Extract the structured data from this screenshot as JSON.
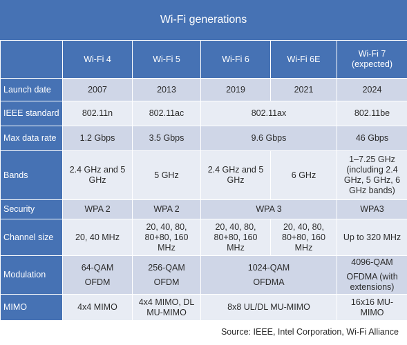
{
  "title": "Wi-Fi generations",
  "columns": [
    "Wi-Fi 4",
    "Wi-Fi 5",
    "Wi-Fi 6",
    "Wi-Fi 6E",
    "Wi-Fi 7\n(expected)"
  ],
  "rows": {
    "launch": {
      "label": "Launch date",
      "c1": "2007",
      "c2": "2013",
      "c3": "2019",
      "c4": "2021",
      "c5": "2024"
    },
    "ieee": {
      "label": "IEEE standard",
      "c1": "802.11n",
      "c2": "802.11ac",
      "c34": "802.11ax",
      "c5": "802.11be"
    },
    "rate": {
      "label": "Max data rate",
      "c1": "1.2 Gbps",
      "c2": "3.5 Gbps",
      "c34": "9.6 Gbps",
      "c5": "46 Gbps"
    },
    "bands": {
      "label": "Bands",
      "c1": "2.4 GHz and 5 GHz",
      "c2": "5 GHz",
      "c3": "2.4 GHz and 5 GHz",
      "c4": "6 GHz",
      "c5": "1–7.25 GHz (including 2.4 GHz, 5 GHz, 6 GHz bands)"
    },
    "security": {
      "label": "Security",
      "c1": "WPA 2",
      "c2": "WPA 2",
      "c34": "WPA 3",
      "c5": "WPA3"
    },
    "channel": {
      "label": "Channel size",
      "c1": "20, 40 MHz",
      "c2": "20, 40, 80, 80+80, 160 MHz",
      "c3": "20, 40, 80, 80+80, 160 MHz",
      "c4": "20, 40, 80, 80+80, 160 MHz",
      "c5": "Up to 320 MHz"
    },
    "modulation": {
      "label": "Modulation",
      "c1a": "64-QAM",
      "c1b": "OFDM",
      "c2a": "256-QAM",
      "c2b": "OFDM",
      "c34a": "1024-QAM",
      "c34b": "OFDMA",
      "c5a": "4096-QAM",
      "c5b": "OFDMA (with extensions)"
    },
    "mimo": {
      "label": "MIMO",
      "c1": "4x4 MIMO",
      "c2": "4x4 MIMO, DL MU-MIMO",
      "c34": "8x8 UL/DL MU-MIMO",
      "c5": "16x16 MU-MIMO"
    }
  },
  "source": "Source: IEEE, Intel Corporation, Wi-Fi Alliance"
}
